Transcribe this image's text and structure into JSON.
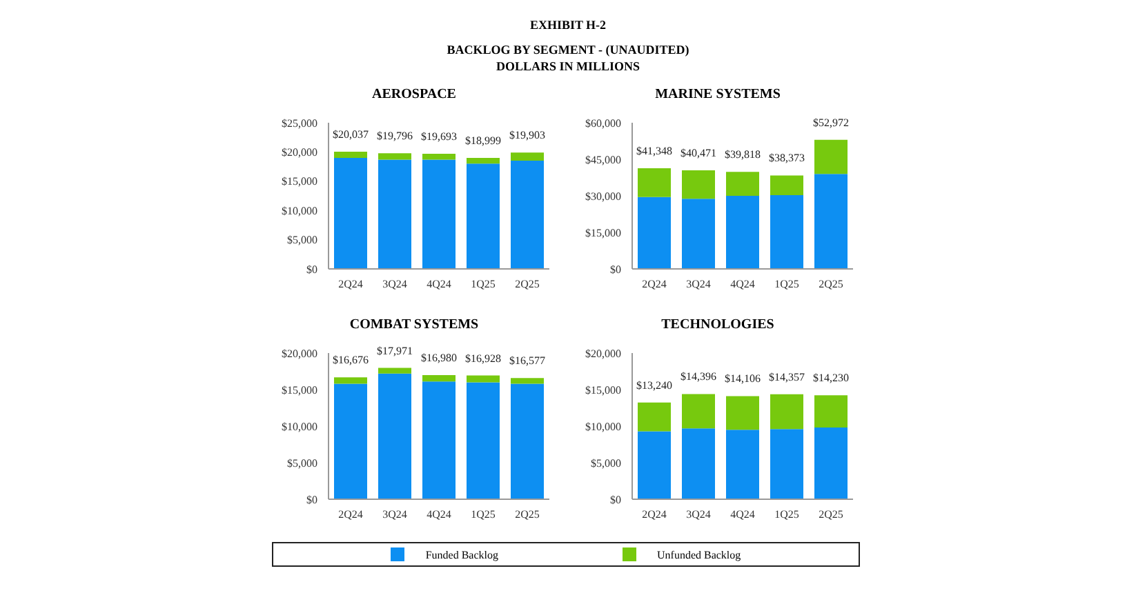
{
  "chart_data": [
    {
      "type": "bar",
      "title": "AEROSPACE",
      "annotations": [
        "EXHIBIT H-2",
        "BACKLOG BY SEGMENT - (UNAUDITED)",
        "DOLLARS IN MILLIONS"
      ],
      "categories": [
        "2Q24",
        "3Q24",
        "4Q24",
        "1Q25",
        "2Q25"
      ],
      "stacked": true,
      "legend": "bottom",
      "series": [
        {
          "name": "Funded Backlog",
          "color": "#0d8ff2",
          "values": [
            19000,
            18700,
            18700,
            18000,
            18500
          ]
        },
        {
          "name": "Unfunded Backlog",
          "color": "#77c90e",
          "values": [
            1037,
            1096,
            993,
            999,
            1403
          ]
        }
      ],
      "totals": [
        "$20,037",
        "$19,796",
        "$19,693",
        "$18,999",
        "$19,903"
      ],
      "ylim": [
        0,
        25000
      ],
      "yticks": [
        {
          "value": 0,
          "label": "$0"
        },
        {
          "value": 5000,
          "label": "$5,000"
        },
        {
          "value": 10000,
          "label": "$10,000"
        },
        {
          "value": 15000,
          "label": "$15,000"
        },
        {
          "value": 20000,
          "label": "$20,000"
        },
        {
          "value": 25000,
          "label": "$25,000"
        }
      ]
    },
    {
      "type": "bar",
      "title": "MARINE SYSTEMS",
      "categories": [
        "2Q24",
        "3Q24",
        "4Q24",
        "1Q25",
        "2Q25"
      ],
      "stacked": true,
      "series": [
        {
          "color": "#0d8ff2",
          "values": [
            29500,
            28800,
            30000,
            30300,
            39000
          ]
        },
        {
          "color": "#77c90e",
          "values": [
            11848,
            11671,
            9818,
            8073,
            13972
          ]
        }
      ],
      "totals": [
        "$41,348",
        "$40,471",
        "$39,818",
        "$38,373",
        "$52,972"
      ],
      "ylim": [
        0,
        60000
      ],
      "yticks": [
        {
          "value": 0,
          "label": "$0"
        },
        {
          "value": 15000,
          "label": "$15,000"
        },
        {
          "value": 30000,
          "label": "$30,000"
        },
        {
          "value": 45000,
          "label": "$45,000"
        },
        {
          "value": 60000,
          "label": "$60,000"
        }
      ]
    },
    {
      "type": "bar",
      "title": "COMBAT SYSTEMS",
      "categories": [
        "2Q24",
        "3Q24",
        "4Q24",
        "1Q25",
        "2Q25"
      ],
      "stacked": true,
      "series": [
        {
          "color": "#0d8ff2",
          "values": [
            15800,
            17200,
            16100,
            16000,
            15800
          ]
        },
        {
          "color": "#77c90e",
          "values": [
            876,
            771,
            880,
            928,
            777
          ]
        }
      ],
      "totals": [
        "$16,676",
        "$17,971",
        "$16,980",
        "$16,928",
        "$16,577"
      ],
      "ylim": [
        0,
        20000
      ],
      "yticks": [
        {
          "value": 0,
          "label": "$0"
        },
        {
          "value": 5000,
          "label": "$5,000"
        },
        {
          "value": 10000,
          "label": "$10,000"
        },
        {
          "value": 15000,
          "label": "$15,000"
        },
        {
          "value": 20000,
          "label": "$20,000"
        }
      ]
    },
    {
      "type": "bar",
      "title": "TECHNOLOGIES",
      "categories": [
        "2Q24",
        "3Q24",
        "4Q24",
        "1Q25",
        "2Q25"
      ],
      "stacked": true,
      "series": [
        {
          "color": "#0d8ff2",
          "values": [
            9300,
            9700,
            9500,
            9600,
            9800
          ]
        },
        {
          "color": "#77c90e",
          "values": [
            3940,
            4696,
            4606,
            4757,
            4430
          ]
        }
      ],
      "totals": [
        "$13,240",
        "$14,396",
        "$14,106",
        "$14,357",
        "$14,230"
      ],
      "ylim": [
        0,
        20000
      ],
      "yticks": [
        {
          "value": 0,
          "label": "$0"
        },
        {
          "value": 5000,
          "label": "$5,000"
        },
        {
          "value": 10000,
          "label": "$10,000"
        },
        {
          "value": 15000,
          "label": "$15,000"
        },
        {
          "value": 20000,
          "label": "$20,000"
        }
      ]
    }
  ]
}
